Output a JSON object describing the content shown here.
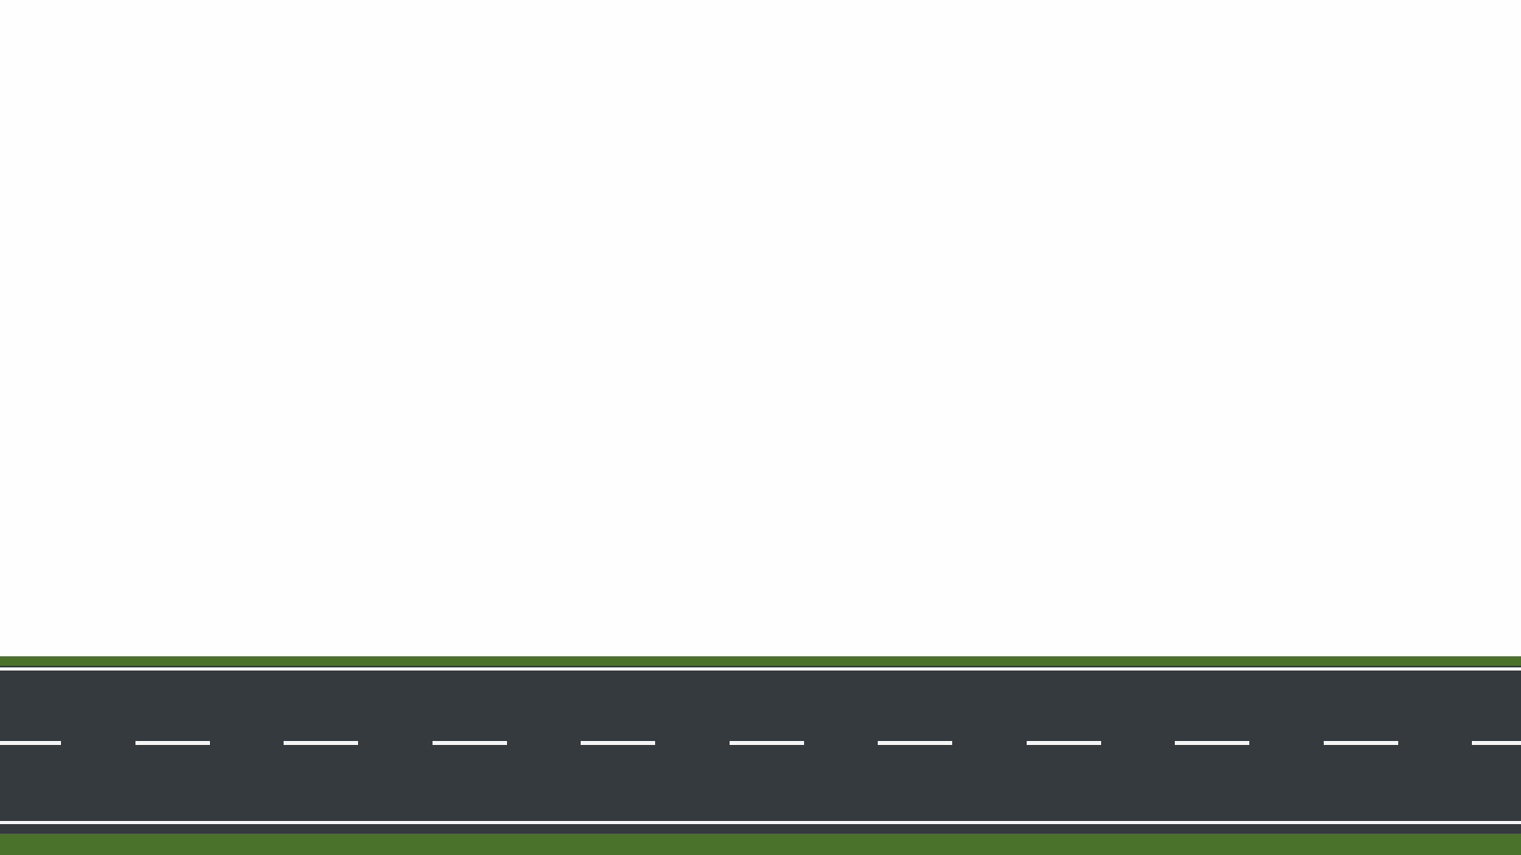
{
  "scene": {
    "sky_color": "#fefefe",
    "grass_color": "#4b722b",
    "asphalt_color": "#353a3e",
    "line_color": "#f5f5f5",
    "center_line": {
      "style": "dashed",
      "dash_count": 11
    }
  }
}
